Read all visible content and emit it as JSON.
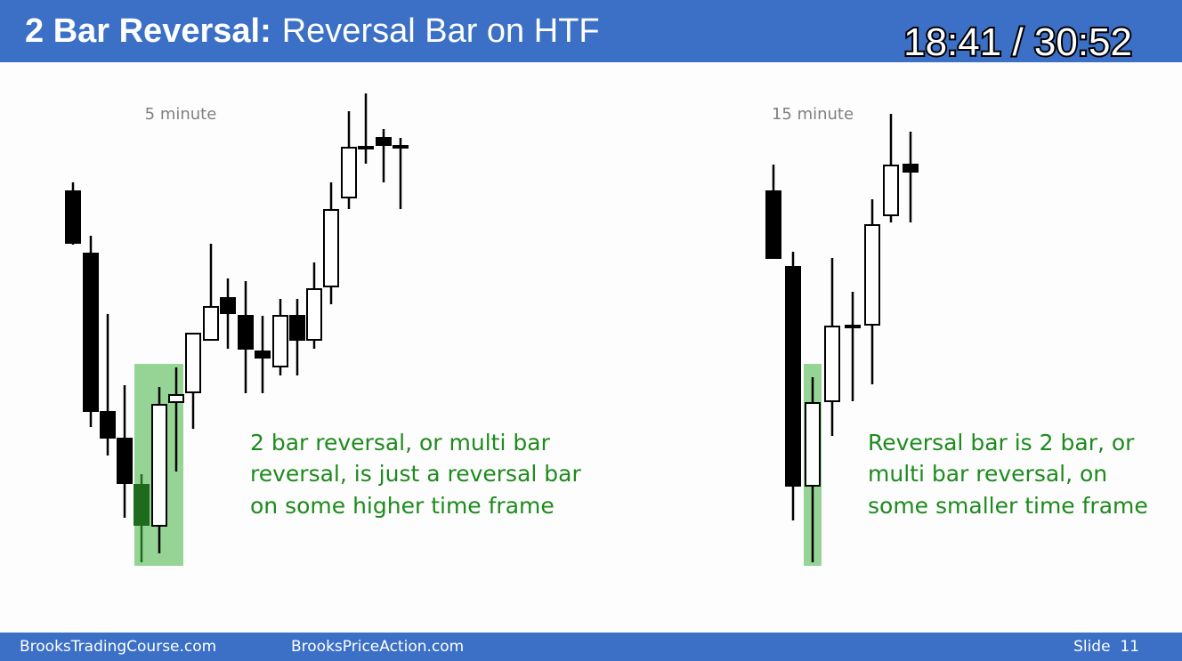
{
  "header": {
    "title_bold": "2 Bar Reversal:",
    "title_rest": "Reversal Bar on HTF",
    "timer": "18:41 / 30:52"
  },
  "charts": [
    {
      "label": "5 minute",
      "annotation": [
        "2 bar reversal, or multi bar",
        "reversal, is just a reversal bar",
        "on some higher time frame"
      ]
    },
    {
      "label": "15 minute",
      "annotation": [
        "Reversal bar is 2 bar, or",
        "multi bar reversal, on",
        "some smaller time frame"
      ]
    }
  ],
  "footer": {
    "left": "BrooksTradingCourse.com",
    "middle": "BrooksPriceAction.com",
    "slide": "Slide  11"
  }
}
